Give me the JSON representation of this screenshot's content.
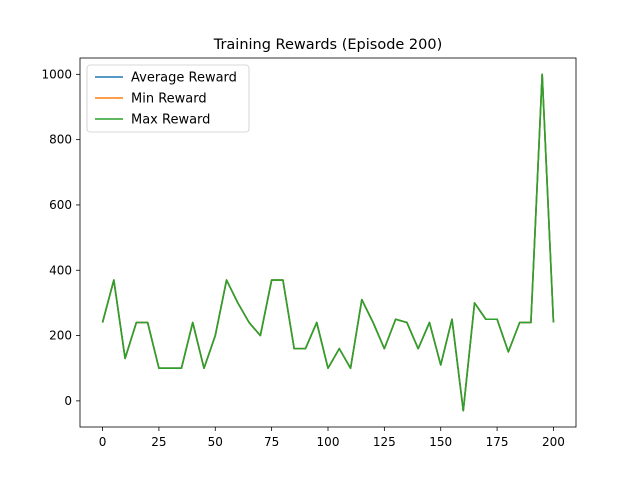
{
  "chart_data": {
    "type": "line",
    "title": "Training Rewards (Episode 200)",
    "xlabel": "",
    "ylabel": "",
    "xlim": [
      -10,
      210
    ],
    "ylim": [
      -80,
      1050
    ],
    "xticks": [
      0,
      25,
      50,
      75,
      100,
      125,
      150,
      175,
      200
    ],
    "yticks": [
      0,
      200,
      400,
      600,
      800,
      1000
    ],
    "grid": false,
    "legend_position": "top-left",
    "x": [
      0,
      5,
      10,
      15,
      20,
      25,
      30,
      35,
      40,
      45,
      50,
      55,
      60,
      65,
      70,
      75,
      80,
      85,
      90,
      95,
      100,
      105,
      110,
      115,
      120,
      125,
      130,
      135,
      140,
      145,
      150,
      155,
      160,
      165,
      170,
      175,
      180,
      185,
      190,
      195,
      200
    ],
    "series": [
      {
        "name": "Average Reward",
        "color": "#1f77b4",
        "values": [
          240,
          370,
          130,
          240,
          240,
          100,
          100,
          100,
          240,
          100,
          200,
          370,
          300,
          240,
          200,
          370,
          370,
          160,
          160,
          240,
          100,
          160,
          100,
          310,
          240,
          160,
          250,
          240,
          160,
          240,
          110,
          250,
          -30,
          300,
          250,
          250,
          150,
          240,
          240,
          1000,
          240
        ]
      },
      {
        "name": "Min Reward",
        "color": "#ff7f0e",
        "values": [
          240,
          370,
          130,
          240,
          240,
          100,
          100,
          100,
          240,
          100,
          200,
          370,
          300,
          240,
          200,
          370,
          370,
          160,
          160,
          240,
          100,
          160,
          100,
          310,
          240,
          160,
          250,
          240,
          160,
          240,
          110,
          250,
          -30,
          300,
          250,
          250,
          150,
          240,
          240,
          1000,
          240
        ]
      },
      {
        "name": "Max Reward",
        "color": "#2ca02c",
        "values": [
          240,
          370,
          130,
          240,
          240,
          100,
          100,
          100,
          240,
          100,
          200,
          370,
          300,
          240,
          200,
          370,
          370,
          160,
          160,
          240,
          100,
          160,
          100,
          310,
          240,
          160,
          250,
          240,
          160,
          240,
          110,
          250,
          -30,
          300,
          250,
          250,
          150,
          240,
          240,
          1000,
          240
        ]
      }
    ]
  }
}
